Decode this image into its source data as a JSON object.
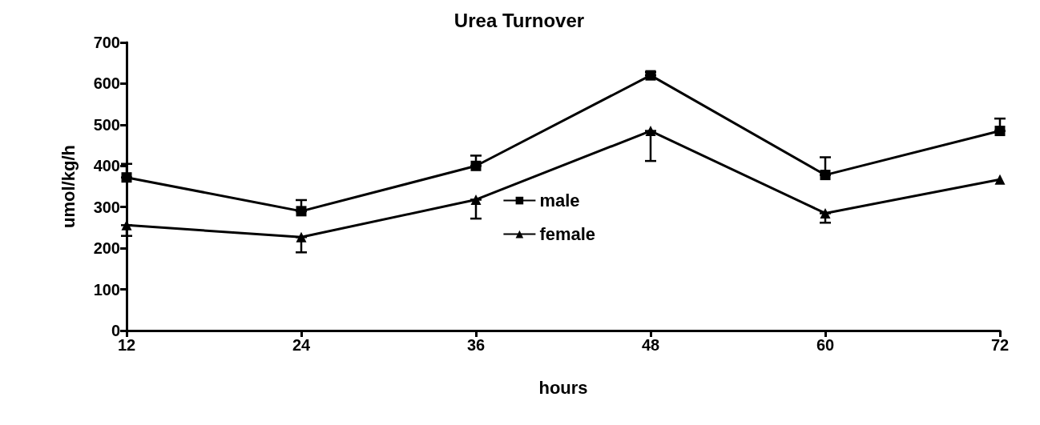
{
  "chart_data": {
    "type": "line",
    "title": "Urea Turnover",
    "xlabel": "hours",
    "ylabel": "umol/kg/h",
    "x": [
      12,
      24,
      36,
      48,
      60,
      72
    ],
    "series": [
      {
        "name": "male",
        "color": "#000000",
        "marker": "square",
        "values": [
          372,
          290,
          400,
          620,
          378,
          485
        ],
        "errors": [
          [
            372,
            405
          ],
          [
            290,
            317
          ],
          [
            400,
            425
          ],
          [
            620,
            628
          ],
          [
            378,
            421
          ],
          [
            485,
            515
          ]
        ]
      },
      {
        "name": "female",
        "color": "#000000",
        "marker": "triangle",
        "values": [
          256,
          227,
          318,
          485,
          285,
          367
        ],
        "errors": [
          [
            230,
            256
          ],
          [
            190,
            227
          ],
          [
            272,
            318
          ],
          [
            412,
            485
          ],
          [
            262,
            285
          ],
          null
        ]
      }
    ],
    "xlim": [
      12,
      72
    ],
    "xticks": [
      12,
      24,
      36,
      48,
      60,
      72
    ],
    "ylim": [
      0,
      700
    ],
    "yticks": [
      0,
      100,
      200,
      300,
      400,
      500,
      600,
      700
    ],
    "grid": false,
    "legend": "center",
    "line_style": "solid"
  }
}
